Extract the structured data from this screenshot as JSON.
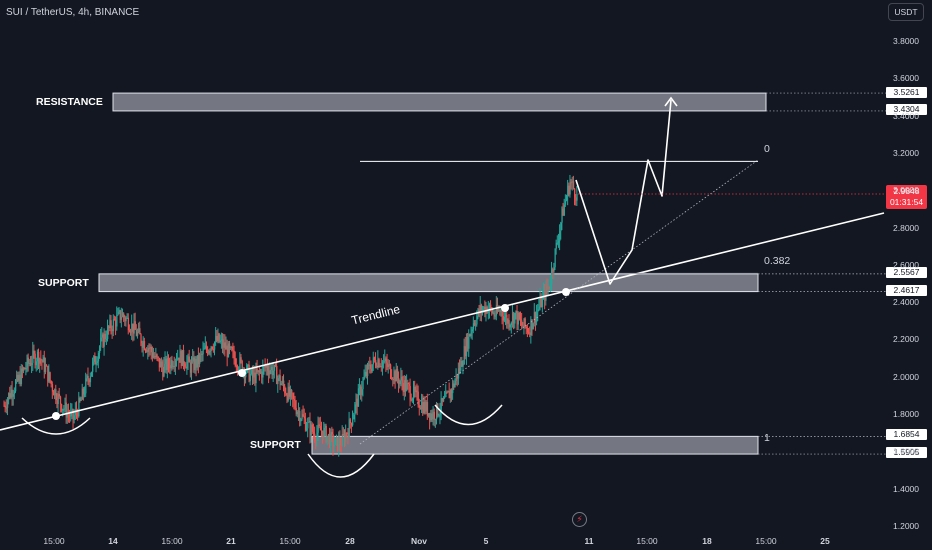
{
  "header": {
    "title": "SUI / TetherUS, 4h, BINANCE",
    "currency": "USDT"
  },
  "labels": {
    "resistance": "RESISTANCE",
    "support_upper": "SUPPORT",
    "support_lower": "SUPPORT",
    "trendline": "Trendline",
    "fib_0": "0",
    "fib_0382": "0.382",
    "fib_1": "1"
  },
  "price_tags": {
    "res_top": "3.5261",
    "res_bottom": "3.4304",
    "sup_top": "2.5567",
    "sup_bottom": "2.4617",
    "low_top": "1.6854",
    "low_bottom": "1.5905"
  },
  "current_price": {
    "value": "2.9848",
    "countdown": "01:31:54"
  },
  "colors": {
    "up": "#26a69a",
    "down": "#ef5350",
    "background": "#131722",
    "current": "#f23645"
  },
  "icons": {
    "replay": "bolt-icon"
  },
  "chart_data": {
    "type": "candlestick",
    "title": "SUI / TetherUS, 4h, BINANCE",
    "ylim": [
      1.2,
      4.0
    ],
    "y_ticks": [
      "3.8000",
      "3.6000",
      "3.4000",
      "3.2000",
      "3.0000",
      "2.8000",
      "2.6000",
      "2.4000",
      "2.2000",
      "2.0000",
      "1.8000",
      "1.6000",
      "1.4000",
      "1.2000"
    ],
    "x_ticks": [
      {
        "label": "15:00",
        "bold": false
      },
      {
        "label": "14",
        "bold": true
      },
      {
        "label": "15:00",
        "bold": false
      },
      {
        "label": "21",
        "bold": true
      },
      {
        "label": "15:00",
        "bold": false
      },
      {
        "label": "28",
        "bold": true
      },
      {
        "label": "Nov",
        "bold": true
      },
      {
        "label": "5",
        "bold": true
      },
      {
        "label": "11",
        "bold": true
      },
      {
        "label": "15:00",
        "bold": false
      },
      {
        "label": "18",
        "bold": true
      },
      {
        "label": "15:00",
        "bold": false
      },
      {
        "label": "25",
        "bold": true
      }
    ],
    "zones": [
      {
        "name": "resistance",
        "top": 3.5261,
        "bottom": 3.4304
      },
      {
        "name": "support",
        "top": 2.5567,
        "bottom": 2.4617
      },
      {
        "name": "support",
        "top": 1.6854,
        "bottom": 1.5905
      }
    ],
    "fib_levels": [
      {
        "level": "0",
        "price": 3.16
      },
      {
        "level": "0.382",
        "price": 2.56
      },
      {
        "level": "1",
        "price": 1.69
      }
    ],
    "current_price": 2.9848,
    "trend_closes": [
      1.85,
      1.93,
      1.98,
      2.05,
      2.1,
      2.12,
      2.05,
      1.95,
      1.88,
      1.82,
      1.78,
      1.86,
      1.98,
      2.08,
      2.18,
      2.25,
      2.3,
      2.34,
      2.3,
      2.25,
      2.2,
      2.16,
      2.1,
      2.05,
      2.08,
      2.12,
      2.1,
      2.06,
      2.08,
      2.14,
      2.18,
      2.2,
      2.16,
      2.12,
      2.08,
      2.04,
      2.0,
      2.02,
      2.06,
      2.04,
      1.98,
      1.92,
      1.86,
      1.8,
      1.74,
      1.7,
      1.72,
      1.68,
      1.64,
      1.66,
      1.74,
      1.86,
      1.98,
      2.06,
      2.1,
      2.08,
      2.04,
      2.0,
      1.96,
      1.92,
      1.88,
      1.84,
      1.8,
      1.83,
      1.88,
      1.95,
      2.05,
      2.18,
      2.3,
      2.36,
      2.38,
      2.34,
      2.36,
      2.3,
      2.34,
      2.28,
      2.26,
      2.34,
      2.42,
      2.5,
      2.7,
      2.9,
      3.05,
      2.98
    ]
  }
}
